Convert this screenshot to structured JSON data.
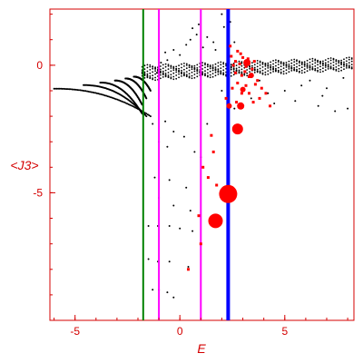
{
  "chart_data": {
    "type": "scatter",
    "xlabel": "E",
    "ylabel": "<J3>",
    "xlim": [
      -6.2,
      8.3
    ],
    "ylim": [
      -10,
      2.2
    ],
    "x_ticks": [
      "-5",
      "0",
      "5"
    ],
    "y_ticks": [
      "0",
      "-5"
    ],
    "x_tick_values": [
      -5,
      0,
      5
    ],
    "y_tick_values": [
      0,
      -5
    ],
    "grid": false,
    "legend": "none",
    "colors": {
      "axis": "#d40000",
      "points": "#000000",
      "highlight": "#ff0000",
      "green_line": "#008000",
      "magenta_line": "#ff00ff",
      "blue_line": "#0000ff"
    },
    "vertical_lines": [
      {
        "x": -1.75,
        "color": "#008000",
        "width": 2
      },
      {
        "x": -1.0,
        "color": "#ff00ff",
        "width": 2
      },
      {
        "x": 1.0,
        "color": "#ff00ff",
        "width": 2
      },
      {
        "x": 2.3,
        "color": "#0000ff",
        "width": 4
      }
    ],
    "branch_curves": [
      {
        "x0": -6.0,
        "y0": -0.92,
        "x1": -1.4,
        "y1": -2.0
      },
      {
        "x0": -4.6,
        "y0": -0.78,
        "x1": -1.6,
        "y1": -2.0
      },
      {
        "x0": -3.8,
        "y0": -0.68,
        "x1": -1.8,
        "y1": -1.9
      },
      {
        "x0": -3.1,
        "y0": -0.6,
        "x1": -1.8,
        "y1": -1.55
      },
      {
        "x0": -2.6,
        "y0": -0.52,
        "x1": -1.6,
        "y1": -1.3
      },
      {
        "x0": -2.2,
        "y0": -0.45,
        "x1": -1.4,
        "y1": -1.0
      }
    ],
    "band": {
      "x_start": -1.8,
      "x_end": 8.2,
      "y_top_start": -0.05,
      "y_top_end": 0.25,
      "y_bottom_start": -0.55,
      "y_bottom_end": -0.15
    },
    "black_points": [
      [
        -1.3,
        -2.3
      ],
      [
        -0.7,
        -2.2
      ],
      [
        -0.3,
        -2.6
      ],
      [
        -1.0,
        -3.0
      ],
      [
        -0.6,
        -3.2
      ],
      [
        0.2,
        -2.8
      ],
      [
        0.7,
        -3.4
      ],
      [
        1.0,
        -3.6
      ],
      [
        -1.2,
        -4.4
      ],
      [
        -0.5,
        -4.5
      ],
      [
        0.3,
        -4.8
      ],
      [
        -1.0,
        -5.2
      ],
      [
        -0.3,
        -5.5
      ],
      [
        0.5,
        -5.7
      ],
      [
        -1.5,
        -6.3
      ],
      [
        -1.05,
        -6.3
      ],
      [
        -0.5,
        -6.3
      ],
      [
        0.0,
        -6.4
      ],
      [
        0.6,
        -6.5
      ],
      [
        -1.5,
        -7.6
      ],
      [
        -1.05,
        -7.7
      ],
      [
        -0.5,
        -7.7
      ],
      [
        0.4,
        -7.9
      ],
      [
        -1.3,
        -8.8
      ],
      [
        -1.0,
        -8.8
      ],
      [
        -0.6,
        -8.9
      ],
      [
        -0.3,
        -9.1
      ],
      [
        1.3,
        -2.3
      ],
      [
        2.6,
        -1.7
      ],
      [
        3.4,
        -1.3
      ],
      [
        4.2,
        -1.1
      ],
      [
        5.0,
        -1.0
      ],
      [
        5.8,
        -0.8
      ],
      [
        6.6,
        -1.6
      ],
      [
        7.4,
        -1.8
      ],
      [
        8.0,
        -1.7
      ],
      [
        3.0,
        -0.9
      ],
      [
        4.5,
        -1.5
      ],
      [
        5.5,
        -1.4
      ],
      [
        6.2,
        -0.6
      ],
      [
        7.0,
        -0.9
      ],
      [
        7.8,
        -0.5
      ],
      [
        2.0,
        -1.0
      ],
      [
        3.8,
        -0.6
      ],
      [
        6.8,
        -1.2
      ],
      [
        0.5,
        1.0
      ],
      [
        0.8,
        1.2
      ],
      [
        0.9,
        1.6
      ],
      [
        0.3,
        0.8
      ],
      [
        1.3,
        1.1
      ],
      [
        1.6,
        0.9
      ],
      [
        2.1,
        1.5
      ],
      [
        2.0,
        2.0
      ],
      [
        2.4,
        1.7
      ],
      [
        -0.3,
        0.6
      ],
      [
        0.0,
        0.4
      ],
      [
        -0.7,
        0.5
      ],
      [
        -0.6,
        0.2
      ],
      [
        1.1,
        0.7
      ],
      [
        1.7,
        0.6
      ],
      [
        2.6,
        0.9
      ],
      [
        0.6,
        1.45
      ],
      [
        -1.1,
        -0.3
      ],
      [
        -0.9,
        0.1
      ]
    ],
    "red_points": [
      [
        2.45,
        0.35
      ],
      [
        2.75,
        0.55
      ],
      [
        2.9,
        0.45
      ],
      [
        3.0,
        0.3
      ],
      [
        3.25,
        0.25
      ],
      [
        3.55,
        0.15
      ],
      [
        2.55,
        0.0
      ],
      [
        2.85,
        0.05
      ],
      [
        3.15,
        -0.05
      ],
      [
        3.45,
        -0.15
      ],
      [
        2.65,
        -0.3
      ],
      [
        2.95,
        -0.4
      ],
      [
        3.3,
        -0.45
      ],
      [
        3.7,
        -0.6
      ],
      [
        2.75,
        -0.7
      ],
      [
        3.15,
        -0.8
      ],
      [
        3.6,
        -0.75
      ],
      [
        3.9,
        -0.9
      ],
      [
        2.5,
        -0.9
      ],
      [
        2.95,
        -1.1
      ],
      [
        3.3,
        -1.1
      ],
      [
        3.8,
        -1.3
      ],
      [
        4.1,
        -1.1
      ],
      [
        4.3,
        -1.6
      ],
      [
        2.2,
        -1.3
      ],
      [
        2.7,
        -1.45
      ],
      [
        3.5,
        -1.45
      ],
      [
        2.4,
        0.75
      ],
      [
        2.65,
        0.15
      ],
      [
        3.1,
        -0.25
      ],
      [
        1.5,
        -2.75
      ],
      [
        1.35,
        -4.4
      ],
      [
        1.75,
        -4.7
      ],
      [
        1.0,
        -7.0
      ],
      [
        0.4,
        -8.0
      ],
      [
        1.1,
        -4.0
      ],
      [
        1.6,
        -3.4
      ],
      [
        0.9,
        -5.9
      ]
    ],
    "red_circles": [
      {
        "x": 2.35,
        "y": -1.6,
        "size": 3
      },
      {
        "x": 2.9,
        "y": -1.6,
        "size": 4
      },
      {
        "x": 2.75,
        "y": -2.5,
        "size": 6
      },
      {
        "x": 2.3,
        "y": -5.05,
        "size": 10
      },
      {
        "x": 1.7,
        "y": -6.1,
        "size": 8
      },
      {
        "x": 3.2,
        "y": 0.1,
        "size": 4
      },
      {
        "x": 3.4,
        "y": -0.4,
        "size": 3
      },
      {
        "x": 3.0,
        "y": -0.95,
        "size": 3
      }
    ]
  }
}
